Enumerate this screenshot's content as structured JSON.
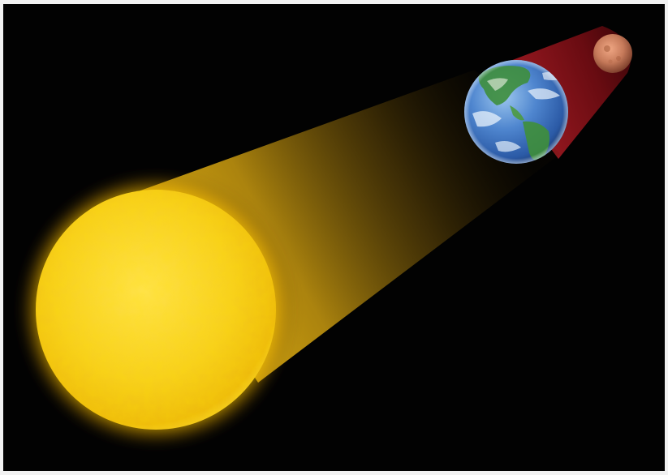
{
  "diagram": {
    "bodies": [
      {
        "name": "Sun",
        "color": "#f2c51a"
      },
      {
        "name": "Earth",
        "color": "#3f79c4"
      },
      {
        "name": "Moon",
        "color": "#c27859"
      }
    ],
    "beams": [
      {
        "name": "sunlight",
        "color": "#e0b214"
      },
      {
        "name": "umbra",
        "color": "#7a0f16"
      }
    ],
    "background_color": "#020202"
  }
}
